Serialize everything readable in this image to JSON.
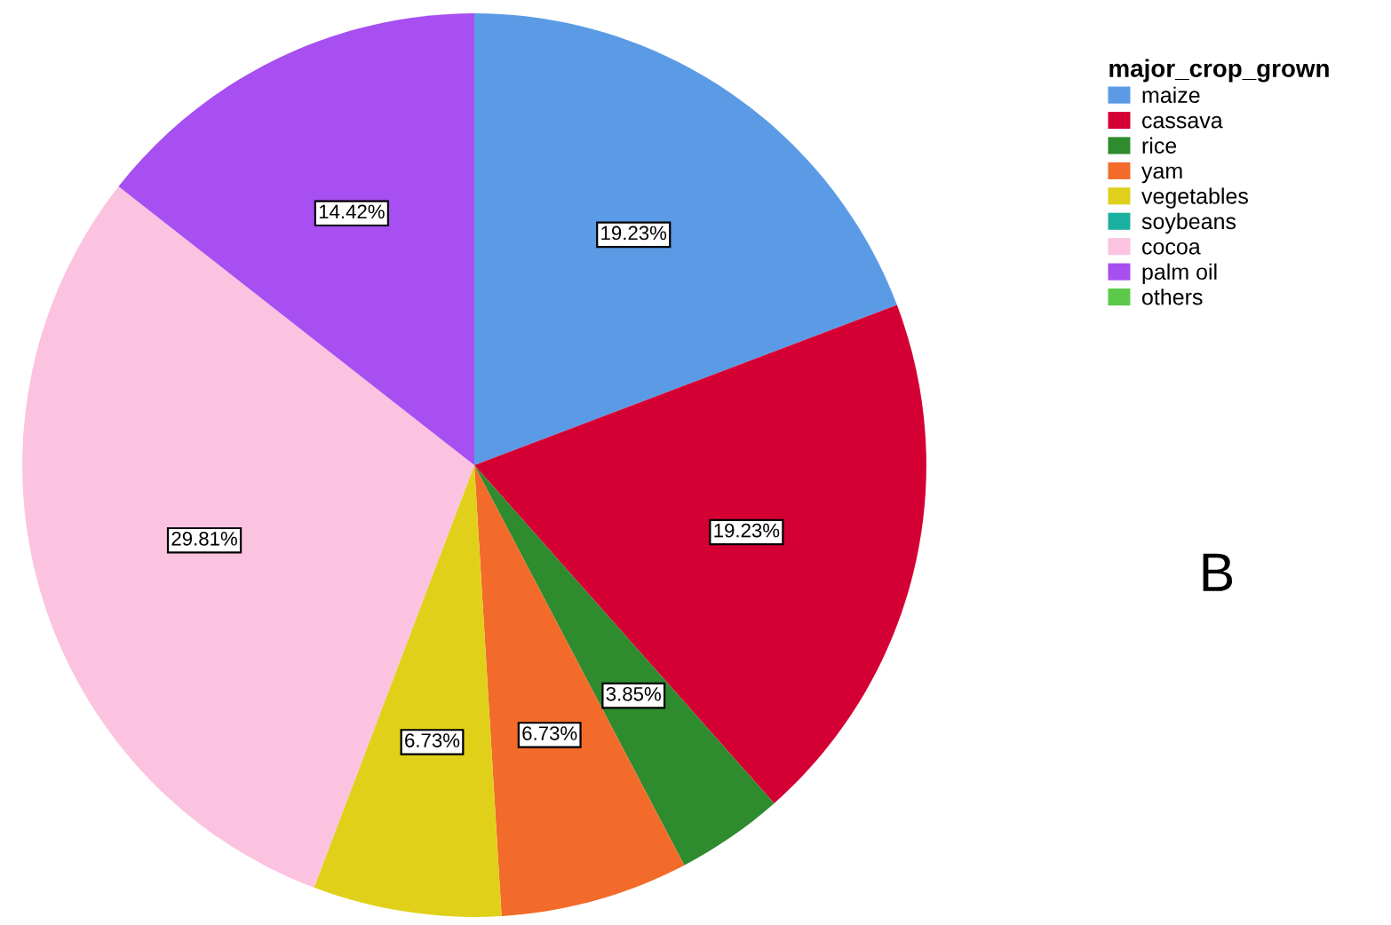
{
  "chart_data": {
    "type": "pie",
    "legend_title": "major_crop_grown",
    "categories": [
      "maize",
      "cassava",
      "rice",
      "yam",
      "vegetables",
      "soybeans",
      "cocoa",
      "palm oil",
      "others"
    ],
    "values": [
      19.23,
      19.23,
      3.85,
      6.73,
      6.73,
      0,
      29.81,
      14.42,
      0
    ],
    "colors": [
      "#5b9be6",
      "#d40034",
      "#2e8b2e",
      "#f26b2a",
      "#e0d01a",
      "#1ab0a0",
      "#fbc3e0",
      "#a74ff0",
      "#5cc94a"
    ],
    "value_labels": [
      "19.23%",
      "19.23%",
      "3.85%",
      "6.73%",
      "6.73%",
      null,
      "29.81%",
      "14.42%",
      null
    ],
    "legend": "top right",
    "annotations": [
      "B"
    ]
  }
}
